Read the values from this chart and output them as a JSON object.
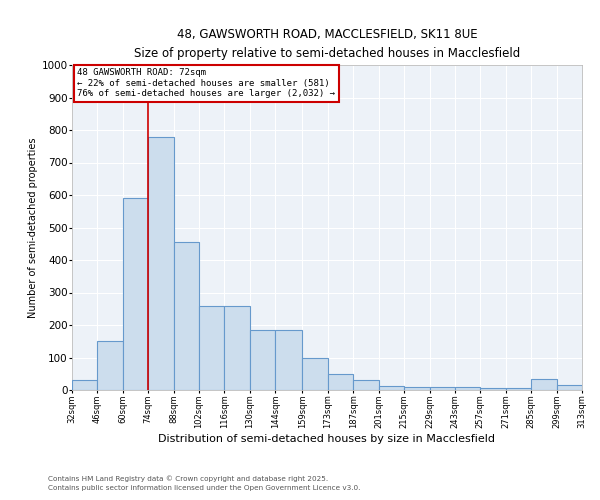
{
  "title_line1": "48, GAWSWORTH ROAD, MACCLESFIELD, SK11 8UE",
  "title_line2": "Size of property relative to semi-detached houses in Macclesfield",
  "xlabel": "Distribution of semi-detached houses by size in Macclesfield",
  "ylabel": "Number of semi-detached properties",
  "annotation_title": "48 GAWSWORTH ROAD: 72sqm",
  "annotation_line2": "← 22% of semi-detached houses are smaller (581)",
  "annotation_line3": "76% of semi-detached houses are larger (2,032) →",
  "footer_line1": "Contains HM Land Registry data © Crown copyright and database right 2025.",
  "footer_line2": "Contains public sector information licensed under the Open Government Licence v3.0.",
  "bin_edges": [
    32,
    46,
    60,
    74,
    88,
    102,
    116,
    130,
    144,
    159,
    173,
    187,
    201,
    215,
    229,
    243,
    257,
    271,
    285,
    299,
    313
  ],
  "bar_values": [
    30,
    150,
    590,
    780,
    455,
    260,
    260,
    185,
    185,
    100,
    50,
    30,
    13,
    10,
    10,
    10,
    5,
    5,
    35,
    15
  ],
  "bar_color": "#ccdded",
  "bar_edge_color": "#6699cc",
  "vline_color": "#cc0000",
  "vline_x": 74,
  "annotation_edge_color": "#cc0000",
  "background_color": "#edf2f8",
  "grid_color": "#d0d8e4",
  "ylim": [
    0,
    1000
  ],
  "yticks": [
    0,
    100,
    200,
    300,
    400,
    500,
    600,
    700,
    800,
    900,
    1000
  ]
}
